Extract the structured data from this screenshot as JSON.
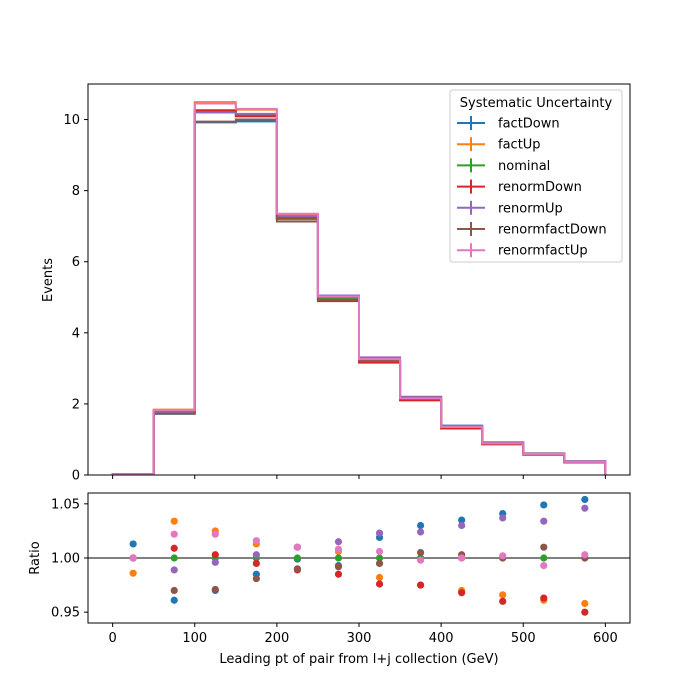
{
  "chart_data": [
    {
      "type": "line",
      "panel": "main",
      "drawstyle": "steps",
      "xlabel": "",
      "ylabel": "Events",
      "xlim": [
        -30,
        630
      ],
      "ylim": [
        0,
        11
      ],
      "xticks": [
        0,
        100,
        200,
        300,
        400,
        500,
        600
      ],
      "yticks": [
        0,
        2,
        4,
        6,
        8,
        10
      ],
      "grid": false,
      "legend_title": "Systematic Uncertainty",
      "legend_position": "top-right",
      "bin_edges": [
        0,
        50,
        100,
        150,
        200,
        250,
        300,
        350,
        400,
        450,
        500,
        550,
        600
      ],
      "series": [
        {
          "name": "factDown",
          "color": "#1f77b4",
          "values": [
            0.02,
            1.72,
            9.92,
            9.95,
            7.21,
            4.93,
            3.2,
            2.18,
            1.39,
            0.91,
            0.59,
            0.37
          ]
        },
        {
          "name": "factUp",
          "color": "#ff7f0e",
          "values": [
            0.02,
            1.84,
            10.49,
            10.28,
            7.3,
            4.99,
            3.18,
            2.11,
            1.34,
            0.88,
            0.59,
            0.35
          ]
        },
        {
          "name": "nominal",
          "color": "#2ca02c",
          "values": [
            0.02,
            1.78,
            10.23,
            10.13,
            7.2,
            4.97,
            3.24,
            2.16,
            1.35,
            0.89,
            0.59,
            0.37
          ]
        },
        {
          "name": "renormDown",
          "color": "#d62728",
          "values": [
            0.02,
            1.8,
            10.26,
            10.09,
            7.24,
            4.89,
            3.16,
            2.1,
            1.31,
            0.86,
            0.57,
            0.35
          ]
        },
        {
          "name": "renormUp",
          "color": "#9467bd",
          "values": [
            0.02,
            1.76,
            10.2,
            10.16,
            7.28,
            5.05,
            3.31,
            2.2,
            1.38,
            0.92,
            0.61,
            0.39
          ]
        },
        {
          "name": "renormfactDown",
          "color": "#8c564b",
          "values": [
            0.02,
            1.73,
            9.94,
            10.0,
            7.13,
            4.93,
            3.22,
            2.17,
            1.35,
            0.89,
            0.6,
            0.37
          ]
        },
        {
          "name": "renormfactUp",
          "color": "#e377c2",
          "values": [
            0.02,
            1.82,
            10.45,
            10.3,
            7.35,
            5.02,
            3.26,
            2.16,
            1.35,
            0.89,
            0.59,
            0.37
          ]
        }
      ]
    },
    {
      "type": "scatter",
      "panel": "ratio",
      "xlabel": "Leading pt of pair from l+j collection (GeV)",
      "ylabel": "Ratio",
      "xlim": [
        -30,
        630
      ],
      "ylim": [
        0.94,
        1.06
      ],
      "xticks": [
        0,
        100,
        200,
        300,
        400,
        500,
        600
      ],
      "yticks": [
        0.95,
        1.0,
        1.05
      ],
      "ytick_labels": [
        "0.95",
        "1.00",
        "1.05"
      ],
      "reference_line": 1.0,
      "grid": false,
      "x": [
        25,
        75,
        125,
        175,
        225,
        275,
        325,
        375,
        425,
        475,
        525,
        575
      ],
      "series": [
        {
          "name": "factDown",
          "color": "#1f77b4",
          "values": [
            1.013,
            0.961,
            0.97,
            0.985,
            0.999,
            0.993,
            1.019,
            1.03,
            1.035,
            1.041,
            1.049,
            1.054
          ]
        },
        {
          "name": "factUp",
          "color": "#ff7f0e",
          "values": [
            0.986,
            1.034,
            1.025,
            1.013,
            1.01,
            1.006,
            0.982,
            0.975,
            0.97,
            0.966,
            0.961,
            0.958
          ]
        },
        {
          "name": "nominal",
          "color": "#2ca02c",
          "values": [
            1.0,
            1.0,
            1.0,
            1.0,
            1.0,
            1.0,
            1.0,
            1.0,
            1.0,
            1.0,
            1.0,
            1.0
          ]
        },
        {
          "name": "renormDown",
          "color": "#d62728",
          "values": [
            1.0,
            1.009,
            1.003,
            0.995,
            0.989,
            0.985,
            0.976,
            0.975,
            0.968,
            0.96,
            0.963,
            0.95
          ]
        },
        {
          "name": "renormUp",
          "color": "#9467bd",
          "values": [
            1.0,
            0.989,
            0.996,
            1.003,
            1.01,
            1.015,
            1.023,
            1.024,
            1.03,
            1.037,
            1.034,
            1.046
          ]
        },
        {
          "name": "renormfactDown",
          "color": "#8c564b",
          "values": [
            1.0,
            0.97,
            0.971,
            0.981,
            0.99,
            0.992,
            0.995,
            1.005,
            1.003,
            1.0,
            1.01,
            1.0
          ]
        },
        {
          "name": "renormfactUp",
          "color": "#e377c2",
          "values": [
            1.0,
            1.022,
            1.022,
            1.016,
            1.01,
            1.008,
            1.006,
            0.998,
            1.0,
            1.002,
            0.993,
            1.003
          ]
        }
      ]
    }
  ]
}
